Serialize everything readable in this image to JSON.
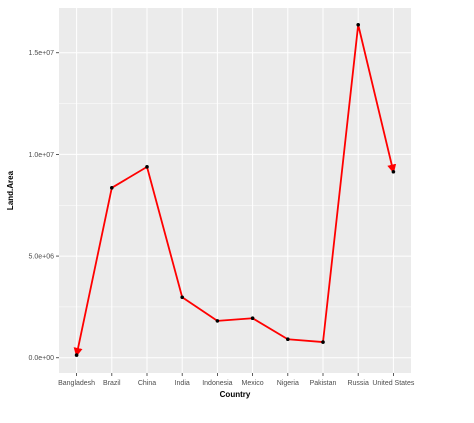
{
  "chart_data": {
    "type": "line",
    "title": "",
    "xlabel": "Country",
    "ylabel": "Land.Area",
    "categories": [
      "Bangladesh",
      "Brazil",
      "China",
      "India",
      "Indonesia",
      "Mexico",
      "Nigeria",
      "Pakistan",
      "Russia",
      "United States"
    ],
    "values": [
      130170,
      8358140,
      9388211,
      2973190,
      1811570,
      1943950,
      910770,
      770880,
      16376870,
      9147420
    ],
    "ylim": [
      -750000,
      17200000
    ],
    "y_ticks": [
      0,
      5000000,
      10000000,
      15000000
    ],
    "y_tick_labels": [
      "0.0e+00",
      "5.0e+06",
      "1.0e+07",
      "1.5e+07"
    ],
    "grid": true,
    "line_color": "#ff0000",
    "point_color": "#000000",
    "panel_color": "#ebebeb",
    "grid_color": "#ffffff",
    "arrows": "both-ends"
  }
}
